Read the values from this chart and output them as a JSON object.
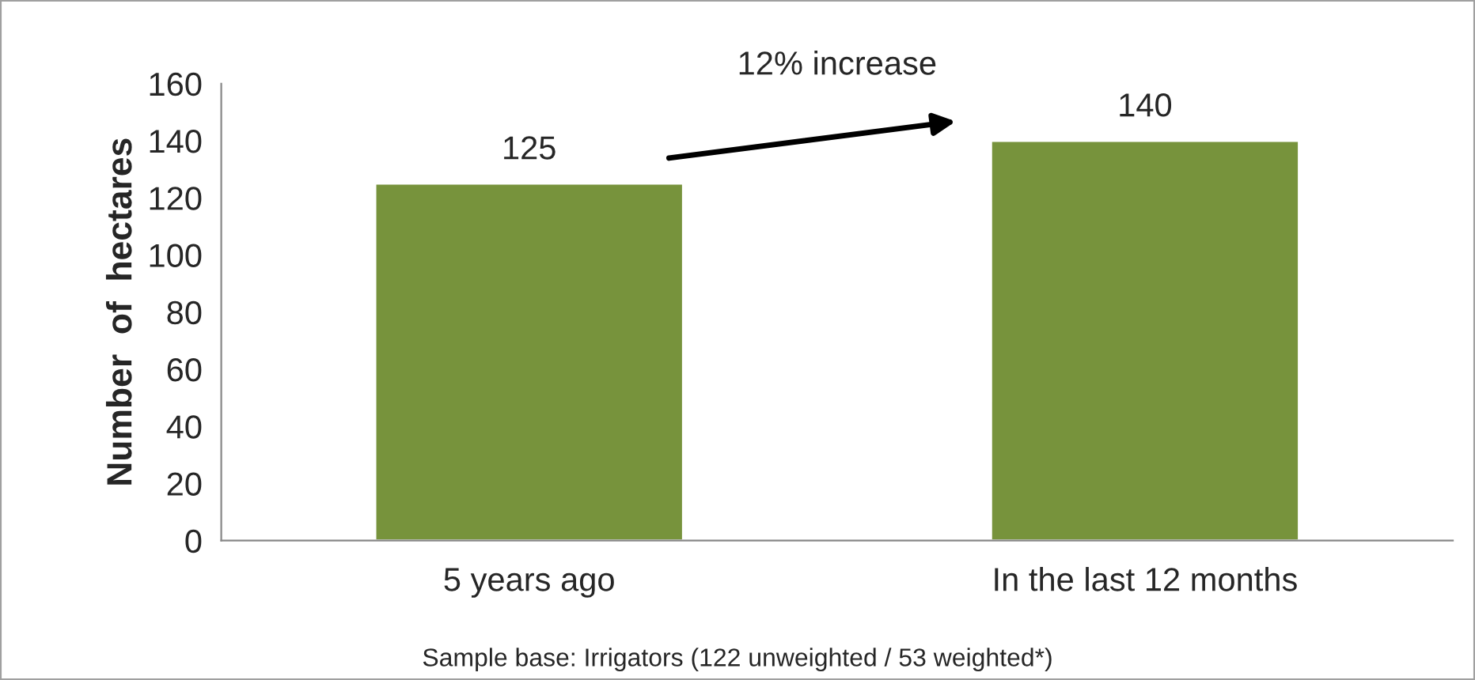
{
  "chart_data": {
    "type": "bar",
    "categories": [
      "5 years ago",
      "In the last 12 months"
    ],
    "values": [
      125,
      140
    ],
    "color": "#77933c",
    "ylabel": "Number  of  hectares",
    "ylim": [
      0,
      160
    ],
    "yticks": [
      0,
      20,
      40,
      60,
      80,
      100,
      120,
      140,
      160
    ],
    "data_labels": true,
    "grid": false,
    "legend": false,
    "annotations": [
      "12% increase",
      "Sample base: Irrigators (122 unweighted / 53 weighted*)"
    ]
  }
}
